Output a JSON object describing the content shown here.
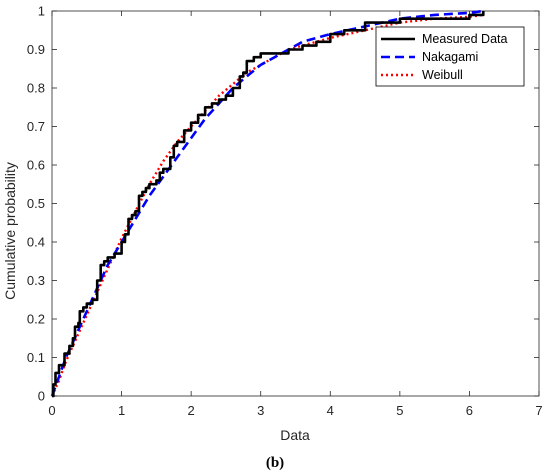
{
  "caption": "(b)",
  "chart_data": {
    "type": "line",
    "xlabel": "Data",
    "ylabel": "Cumulative probability",
    "xlim": [
      0,
      7
    ],
    "ylim": [
      0,
      1
    ],
    "xticks": [
      "0",
      "1",
      "2",
      "3",
      "4",
      "5",
      "6",
      "7"
    ],
    "yticks": [
      "0",
      "0.1",
      "0.2",
      "0.3",
      "0.4",
      "0.5",
      "0.6",
      "0.7",
      "0.8",
      "0.9",
      "1"
    ],
    "grid": false,
    "legend_position": "top-right",
    "series": [
      {
        "name": "Measured Data",
        "style": "solid",
        "color": "#000000",
        "x": [
          0.0,
          0.02,
          0.05,
          0.1,
          0.18,
          0.25,
          0.3,
          0.33,
          0.38,
          0.4,
          0.45,
          0.5,
          0.58,
          0.65,
          0.7,
          0.75,
          0.8,
          0.85,
          0.9,
          1.0,
          1.05,
          1.1,
          1.15,
          1.2,
          1.25,
          1.3,
          1.35,
          1.4,
          1.5,
          1.55,
          1.6,
          1.7,
          1.75,
          1.8,
          1.9,
          2.0,
          2.1,
          2.2,
          2.3,
          2.4,
          2.5,
          2.6,
          2.7,
          2.75,
          2.8,
          2.9,
          3.0,
          3.05,
          3.2,
          3.4,
          3.6,
          3.8,
          4.0,
          4.2,
          4.5,
          5.0,
          5.5,
          6.0,
          6.2
        ],
        "y": [
          0.0,
          0.03,
          0.06,
          0.08,
          0.11,
          0.13,
          0.15,
          0.18,
          0.19,
          0.22,
          0.23,
          0.24,
          0.25,
          0.3,
          0.34,
          0.35,
          0.36,
          0.36,
          0.37,
          0.4,
          0.42,
          0.46,
          0.47,
          0.48,
          0.52,
          0.53,
          0.54,
          0.55,
          0.56,
          0.58,
          0.59,
          0.62,
          0.65,
          0.66,
          0.69,
          0.71,
          0.73,
          0.75,
          0.76,
          0.77,
          0.78,
          0.8,
          0.83,
          0.84,
          0.87,
          0.88,
          0.89,
          0.89,
          0.89,
          0.9,
          0.91,
          0.92,
          0.94,
          0.95,
          0.97,
          0.98,
          0.98,
          0.99,
          1.0
        ]
      },
      {
        "name": "Nakagami",
        "style": "dashed",
        "color": "#0000ff",
        "x": [
          0.0,
          0.1,
          0.2,
          0.3,
          0.4,
          0.5,
          0.6,
          0.7,
          0.8,
          1.0,
          1.2,
          1.4,
          1.6,
          1.8,
          2.0,
          2.2,
          2.4,
          2.6,
          2.8,
          3.0,
          3.2,
          3.4,
          3.6,
          3.8,
          4.0,
          4.5,
          5.0,
          5.5,
          6.0,
          6.2
        ],
        "y": [
          0.0,
          0.05,
          0.1,
          0.14,
          0.18,
          0.22,
          0.26,
          0.3,
          0.34,
          0.4,
          0.46,
          0.52,
          0.57,
          0.62,
          0.67,
          0.72,
          0.76,
          0.8,
          0.83,
          0.86,
          0.88,
          0.9,
          0.92,
          0.93,
          0.94,
          0.96,
          0.98,
          0.99,
          0.995,
          1.0
        ]
      },
      {
        "name": "Weibull",
        "style": "dotted",
        "color": "#ff0000",
        "x": [
          0.0,
          0.1,
          0.2,
          0.3,
          0.4,
          0.5,
          0.6,
          0.7,
          0.8,
          1.0,
          1.2,
          1.4,
          1.6,
          1.8,
          2.0,
          2.2,
          2.4,
          2.6,
          2.8,
          3.0,
          3.2,
          3.4,
          3.6,
          3.8,
          4.0,
          4.5,
          5.0,
          5.5,
          6.0,
          6.2
        ],
        "y": [
          0.0,
          0.04,
          0.09,
          0.13,
          0.17,
          0.21,
          0.25,
          0.29,
          0.33,
          0.41,
          0.48,
          0.55,
          0.61,
          0.66,
          0.7,
          0.74,
          0.78,
          0.81,
          0.84,
          0.86,
          0.88,
          0.9,
          0.91,
          0.92,
          0.93,
          0.95,
          0.97,
          0.98,
          0.985,
          0.99
        ]
      }
    ]
  }
}
